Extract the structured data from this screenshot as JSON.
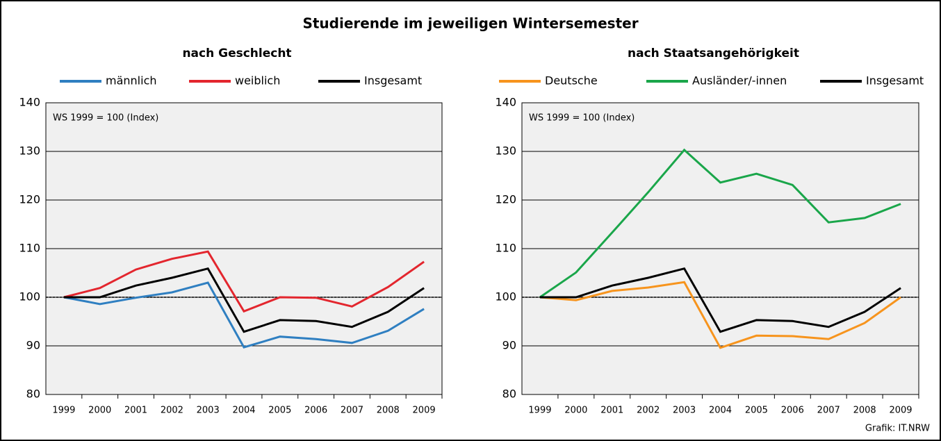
{
  "title": "Studierende im jeweiligen Wintersemester",
  "source": "Grafik: IT.NRW",
  "chart_data": [
    {
      "type": "line",
      "title": "nach Geschlecht",
      "annotation": "WS 1999 = 100 (Index)",
      "categories": [
        "1999",
        "2000",
        "2001",
        "2002",
        "2003",
        "2004",
        "2005",
        "2006",
        "2007",
        "2008",
        "2009"
      ],
      "series": [
        {
          "name": "männlich",
          "color": "#2f7fc1",
          "values": [
            100,
            98.6,
            99.9,
            101,
            103,
            89.7,
            91.9,
            91.4,
            90.6,
            93.1,
            97.6
          ]
        },
        {
          "name": "weiblich",
          "color": "#e3262e",
          "values": [
            100,
            101.9,
            105.7,
            107.9,
            109.4,
            97.1,
            100,
            99.9,
            98.1,
            102.1,
            107.3
          ]
        },
        {
          "name": "Insgesamt",
          "color": "#000000",
          "values": [
            100,
            100,
            102.4,
            104,
            105.9,
            92.9,
            95.3,
            95.1,
            93.9,
            97,
            101.9
          ]
        }
      ],
      "ylim": [
        80,
        140
      ],
      "yticks": [
        80,
        90,
        100,
        110,
        120,
        130,
        140
      ],
      "grid": true,
      "reference": 100
    },
    {
      "type": "line",
      "title": "nach Staatsangehörigkeit",
      "annotation": "WS 1999 = 100 (Index)",
      "categories": [
        "1999",
        "2000",
        "2001",
        "2002",
        "2003",
        "2004",
        "2005",
        "2006",
        "2007",
        "2008",
        "2009"
      ],
      "series": [
        {
          "name": "Deutsche",
          "color": "#f7941d",
          "values": [
            100,
            99.4,
            101.3,
            102,
            103.1,
            89.6,
            92.1,
            92,
            91.4,
            94.7,
            100
          ]
        },
        {
          "name": "Ausländer/-innen",
          "color": "#1aa64a",
          "values": [
            100,
            105.1,
            113.3,
            121.6,
            130.3,
            123.6,
            125.4,
            123.1,
            115.4,
            116.3,
            119.2
          ]
        },
        {
          "name": "Insgesamt",
          "color": "#000000",
          "values": [
            100,
            100,
            102.4,
            104,
            105.9,
            92.9,
            95.3,
            95.1,
            93.9,
            97,
            101.9
          ]
        }
      ],
      "ylim": [
        80,
        140
      ],
      "yticks": [
        80,
        90,
        100,
        110,
        120,
        130,
        140
      ],
      "grid": true,
      "reference": 100
    }
  ]
}
